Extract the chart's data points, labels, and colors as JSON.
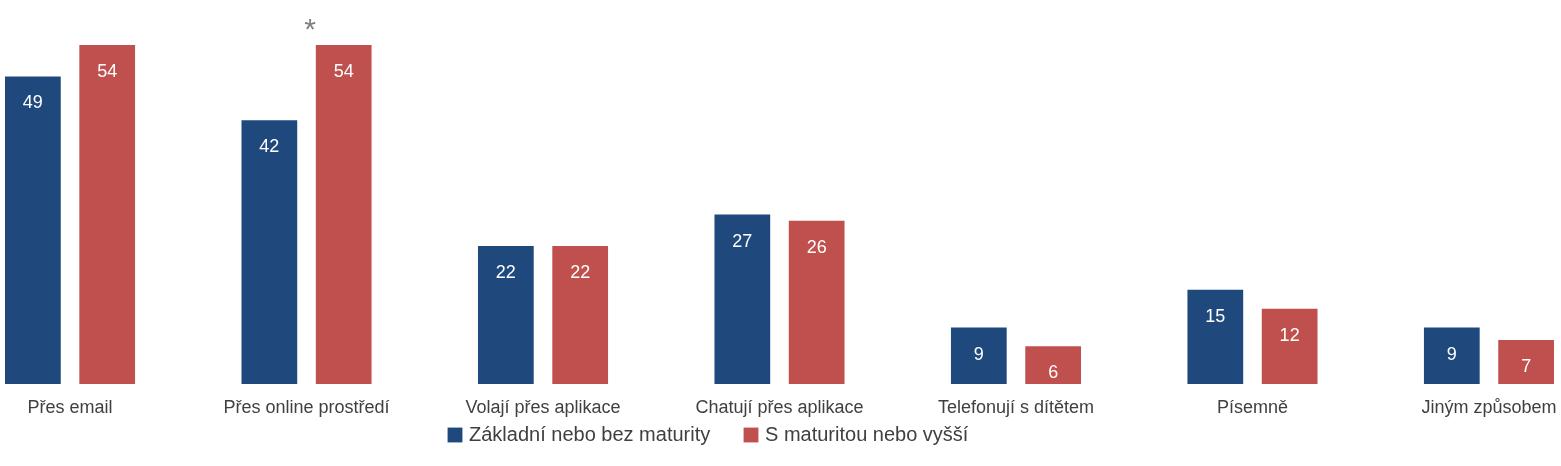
{
  "chart_data": {
    "type": "bar",
    "categories": [
      "Přes email",
      "Přes online prostředí",
      "Volají přes aplikace",
      "Chatují přes aplikace",
      "Telefonují s dítětem",
      "Písemně",
      "Jiným způsobem"
    ],
    "series": [
      {
        "name": "Základní nebo bez maturity",
        "color": "#1f497d",
        "values": [
          49,
          42,
          22,
          27,
          9,
          15,
          9
        ]
      },
      {
        "name": "S maturitou nebo vyšší",
        "color": "#c0504d",
        "values": [
          54,
          54,
          22,
          26,
          6,
          12,
          7
        ]
      }
    ],
    "data_labels": true,
    "legend": "bottom",
    "grid": false,
    "annotations": [
      "*"
    ]
  }
}
